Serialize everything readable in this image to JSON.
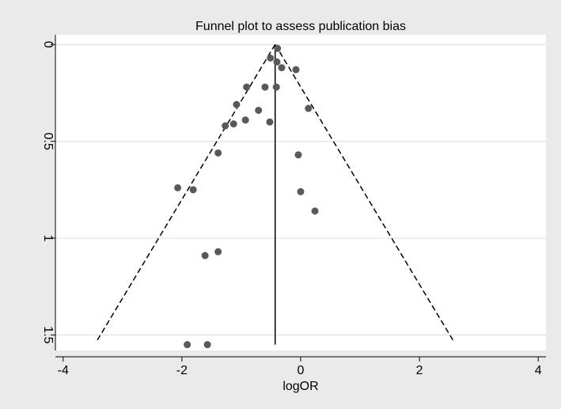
{
  "chart_data": {
    "type": "scatter",
    "title": "Funnel plot to assess publication bias",
    "x_label": "logOR",
    "x": [
      -0.39,
      -0.51,
      -0.4,
      -0.32,
      -0.08,
      -0.91,
      -0.6,
      -0.41,
      -1.08,
      0.13,
      -0.71,
      -0.93,
      -0.52,
      -1.13,
      -1.27,
      -1.39,
      -0.04,
      -2.07,
      -1.81,
      0.0,
      0.24,
      -1.39,
      -1.61,
      -1.91,
      -1.57
    ],
    "values": [
      0.02,
      0.07,
      0.09,
      0.12,
      0.13,
      0.22,
      0.22,
      0.22,
      0.31,
      0.33,
      0.34,
      0.39,
      0.4,
      0.41,
      0.42,
      0.56,
      0.57,
      0.74,
      0.75,
      0.76,
      0.86,
      1.07,
      1.09,
      1.55,
      1.55
    ],
    "color": "#595959",
    "xlim": [
      -4.13,
      4.13
    ],
    "xticks": [
      -4,
      -2,
      0,
      2,
      4
    ],
    "ylim": [
      -0.05,
      1.58
    ],
    "yticks": [
      0,
      0.5,
      1,
      1.5
    ],
    "y_inverted": true,
    "grid": true,
    "pooled_line": {
      "x": [
        -0.43,
        -0.43
      ],
      "y": [
        0,
        1.55
      ]
    },
    "funnel_left": {
      "x": [
        -0.43,
        -3.45
      ],
      "y": [
        0,
        1.54
      ]
    },
    "funnel_right": {
      "x": [
        -0.43,
        2.59
      ],
      "y": [
        0,
        1.54
      ]
    }
  }
}
